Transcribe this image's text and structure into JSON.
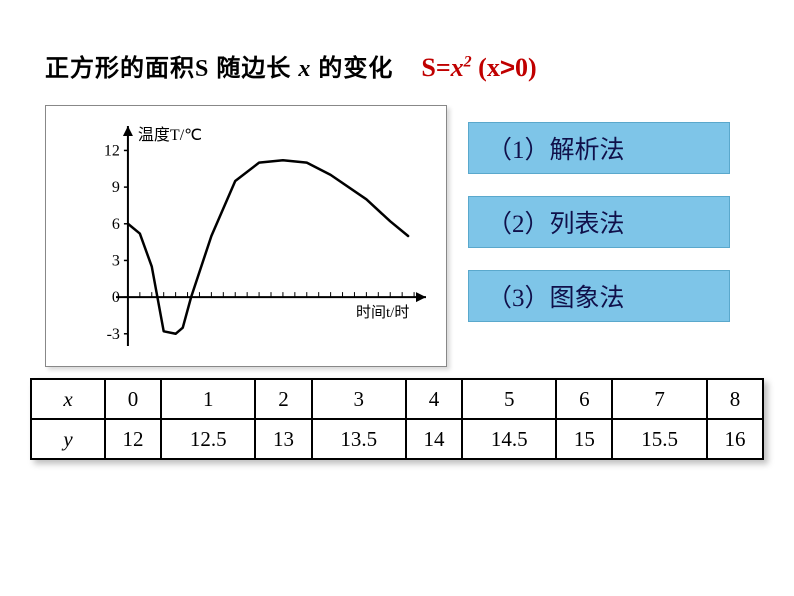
{
  "title": {
    "prefix": "正方形的面积",
    "var_s": "S",
    "mid": " 随边长 ",
    "var_x": "x",
    "suffix": " 的变化"
  },
  "formula": {
    "lhs": "S=",
    "var": "x",
    "exp": "2",
    "cond_pre": " (",
    "cond_var": "x",
    "cond_op": ">",
    "cond_val": "0)"
  },
  "chart": {
    "y_label": "温度T/℃",
    "x_label": "时间t/时",
    "y_ticks": [
      "12",
      "9",
      "6",
      "3",
      "0",
      "-3"
    ],
    "y_tick_vals": [
      12,
      9,
      6,
      3,
      0,
      -3
    ],
    "colors": {
      "axis": "#000000",
      "curve": "#000000",
      "bg": "#ffffff"
    },
    "curve_points": [
      [
        0,
        6
      ],
      [
        1,
        5.2
      ],
      [
        2,
        2.5
      ],
      [
        3,
        -2.8
      ],
      [
        4,
        -3
      ],
      [
        4.6,
        -2.5
      ],
      [
        5.3,
        0
      ],
      [
        7,
        5
      ],
      [
        9,
        9.5
      ],
      [
        11,
        11
      ],
      [
        13,
        11.2
      ],
      [
        15,
        11
      ],
      [
        17,
        10
      ],
      [
        20,
        8
      ],
      [
        22,
        6.2
      ],
      [
        23.5,
        5
      ]
    ],
    "x_tick_count": 24,
    "ylim": [
      -4,
      14
    ],
    "xlim": [
      -1,
      25
    ]
  },
  "methods": [
    "（1）解析法",
    "（2）列表法",
    "（3）图象法"
  ],
  "table": {
    "row_headers": [
      "x",
      "y"
    ],
    "columns": [
      "0",
      "1",
      "2",
      "3",
      "4",
      "5",
      "6",
      "7",
      "8"
    ],
    "rows": [
      [
        "12",
        "12.5",
        "13",
        "13.5",
        "14",
        "14.5",
        "15",
        "15.5",
        "16"
      ]
    ]
  },
  "colors": {
    "accent_red": "#c00000",
    "method_bg": "#7ec5e8",
    "method_border": "#5aa8cc",
    "method_text": "#10104a"
  }
}
